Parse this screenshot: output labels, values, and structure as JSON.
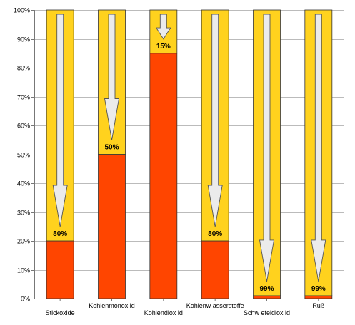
{
  "chart_data": {
    "type": "bar",
    "stacked": true,
    "categories": [
      "Stickoxide",
      "Kohlenmonoxid",
      "Kohlendioxid",
      "Kohlenwasserstoffe",
      "Schwefeldioxid",
      "Ruß"
    ],
    "category_labels_as_printed": [
      "Stickoxide",
      "Kohlenmonox id",
      "Kohlendiox id",
      "Kohlenw asserstoffe",
      "Schw efeldiox id",
      "Ruß"
    ],
    "series": [
      {
        "values": [
          20,
          50,
          85,
          20,
          1,
          1
        ]
      },
      {
        "values": [
          80,
          50,
          15,
          80,
          99,
          99
        ]
      }
    ],
    "reduction_labels": [
      "80%",
      "50%",
      "15%",
      "80%",
      "99%",
      "99%"
    ],
    "ylim": [
      0,
      100
    ],
    "yticks": [
      0,
      10,
      20,
      30,
      40,
      50,
      60,
      70,
      80,
      90,
      100
    ],
    "ytick_labels": [
      "0%",
      "10%",
      "20%",
      "30%",
      "40%",
      "50%",
      "60%",
      "70%",
      "80%",
      "90%",
      "100%"
    ],
    "grid": true,
    "legend": "none",
    "title": "",
    "xlabel": "",
    "ylabel": "",
    "colors": {
      "remaining": "#FF4500",
      "reduced": "#FFD21E",
      "arrow_fill": "#EBEBEB",
      "arrow_stroke": "#555555",
      "grid": "#BBBBBB",
      "axis": "#777777"
    }
  }
}
